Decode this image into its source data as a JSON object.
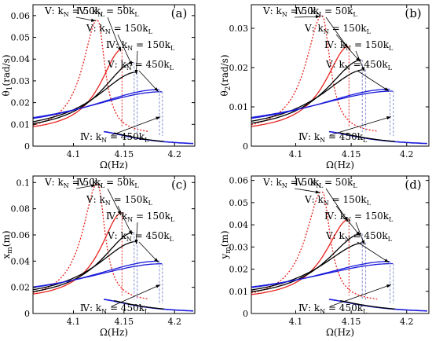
{
  "chart_data": [
    {
      "panel": "(a)",
      "type": "line",
      "ylabel": "θ1(rad/s)",
      "xlabel": "Ω(Hz)",
      "xlim": [
        4.06,
        4.22
      ],
      "ylim": [
        0,
        0.065
      ],
      "xticks": [
        4.1,
        4.15,
        4.2
      ],
      "xtick_labels": [
        "4.1",
        "4.15",
        "4.2"
      ],
      "yticks": [
        0,
        0.01,
        0.02,
        0.03,
        0.04,
        0.05,
        0.06
      ],
      "ytick_labels": [
        "0",
        "0.01",
        "0.02",
        "0.03",
        "0.04",
        "0.05",
        "0.06"
      ],
      "peaks": {
        "red": [
          4.124,
          0.0585,
          4.148,
          0.0445
        ],
        "black": [
          4.16,
          0.0385,
          4.163,
          0.034
        ],
        "blue": [
          4.185,
          0.026,
          4.188,
          0.025
        ]
      },
      "annotations": [
        {
          "text": "Ⅴ: k",
          "sub": "N",
          "rest": " = 50k",
          "sub2": "L",
          "tx": 15,
          "ty": 12,
          "ax": 4.122,
          "ay": 0.0575
        },
        {
          "text": "Ⅳ: k",
          "sub": "N",
          "rest": " = 50k",
          "sub2": "L",
          "tx": 55,
          "ty": 12,
          "ax": 4.147,
          "ay": 0.0435
        },
        {
          "text": "Ⅴ: k",
          "sub": "N",
          "rest": " = 150k",
          "sub2": "L",
          "tx": 68,
          "ty": 34,
          "ax": 4.158,
          "ay": 0.037
        },
        {
          "text": "Ⅳ: k",
          "sub": "N",
          "rest": " = 150k",
          "sub2": "L",
          "tx": 93,
          "ty": 55,
          "ax": 4.162,
          "ay": 0.033
        },
        {
          "text": "Ⅴ: k",
          "sub": "N",
          "rest": " = 450k",
          "sub2": "L",
          "tx": 95,
          "ty": 80,
          "ax": 4.184,
          "ay": 0.025
        },
        {
          "text": "Ⅳ: k",
          "sub": "N",
          "rest": " = 450k",
          "sub2": "L",
          "tx": 60,
          "ty": 172,
          "ax": 4.186,
          "ay": 0.0135
        }
      ]
    },
    {
      "panel": "(b)",
      "type": "line",
      "ylabel": "θ2(rad/s)",
      "xlabel": "Ω(Hz)",
      "xlim": [
        4.06,
        4.22
      ],
      "ylim": [
        0,
        0.036
      ],
      "xticks": [
        4.1,
        4.15,
        4.2
      ],
      "xtick_labels": [
        "4.1",
        "4.15",
        "4.2"
      ],
      "yticks": [
        0,
        0.01,
        0.02,
        0.03
      ],
      "ytick_labels": [
        "0",
        "0.01",
        "0.02",
        "0.03"
      ],
      "peaks": {
        "red": [
          4.124,
          0.0335,
          4.148,
          0.0255
        ],
        "black": [
          4.16,
          0.022,
          4.163,
          0.0195
        ],
        "blue": [
          4.185,
          0.0145,
          4.188,
          0.014
        ]
      },
      "annotations": [
        {
          "text": "Ⅴ: k",
          "sub": "N",
          "rest": " = 50k",
          "sub2": "L",
          "tx": 15,
          "ty": 12,
          "ax": 4.122,
          "ay": 0.033
        },
        {
          "text": "Ⅳ: k",
          "sub": "N",
          "rest": " = 50k",
          "sub2": "L",
          "tx": 55,
          "ty": 12,
          "ax": 4.147,
          "ay": 0.025
        },
        {
          "text": "Ⅴ: k",
          "sub": "N",
          "rest": " = 150k",
          "sub2": "L",
          "tx": 68,
          "ty": 34,
          "ax": 4.158,
          "ay": 0.0215
        },
        {
          "text": "Ⅳ: k",
          "sub": "N",
          "rest": " = 150k",
          "sub2": "L",
          "tx": 93,
          "ty": 55,
          "ax": 4.162,
          "ay": 0.019
        },
        {
          "text": "Ⅴ: k",
          "sub": "N",
          "rest": " = 450k",
          "sub2": "L",
          "tx": 95,
          "ty": 80,
          "ax": 4.184,
          "ay": 0.014
        },
        {
          "text": "Ⅳ: k",
          "sub": "N",
          "rest": " = 450k",
          "sub2": "L",
          "tx": 60,
          "ty": 172,
          "ax": 4.186,
          "ay": 0.0075
        }
      ]
    },
    {
      "panel": "(c)",
      "type": "line",
      "ylabel": "xm(m)",
      "xlabel": "Ω(Hz)",
      "xlim": [
        4.06,
        4.22
      ],
      "ylim": [
        0,
        0.105
      ],
      "xticks": [
        4.1,
        4.15,
        4.2
      ],
      "xtick_labels": [
        "4.1",
        "4.15",
        "4.2"
      ],
      "yticks": [
        0,
        0.02,
        0.04,
        0.06,
        0.08,
        0.1
      ],
      "ytick_labels": [
        "0",
        "0.02",
        "0.04",
        "0.06",
        "0.08",
        "0.1"
      ],
      "peaks": {
        "red": [
          4.124,
          0.1,
          4.148,
          0.077
        ],
        "black": [
          4.16,
          0.062,
          4.163,
          0.055
        ],
        "blue": [
          4.185,
          0.04,
          4.188,
          0.038
        ]
      },
      "annotations": [
        {
          "text": "Ⅴ: k",
          "sub": "N",
          "rest": " = 50k",
          "sub2": "L",
          "tx": 15,
          "ty": 12,
          "ax": 4.122,
          "ay": 0.098
        },
        {
          "text": "Ⅳ: k",
          "sub": "N",
          "rest": " = 50k",
          "sub2": "L",
          "tx": 55,
          "ty": 12,
          "ax": 4.147,
          "ay": 0.075
        },
        {
          "text": "Ⅴ: k",
          "sub": "N",
          "rest": " = 150k",
          "sub2": "L",
          "tx": 68,
          "ty": 34,
          "ax": 4.158,
          "ay": 0.06
        },
        {
          "text": "Ⅳ: k",
          "sub": "N",
          "rest": " = 150k",
          "sub2": "L",
          "tx": 93,
          "ty": 55,
          "ax": 4.162,
          "ay": 0.053
        },
        {
          "text": "Ⅴ: k",
          "sub": "N",
          "rest": " = 450k",
          "sub2": "L",
          "tx": 95,
          "ty": 80,
          "ax": 4.184,
          "ay": 0.039
        },
        {
          "text": "Ⅳ: k",
          "sub": "N",
          "rest": " = 450k",
          "sub2": "L",
          "tx": 60,
          "ty": 172,
          "ax": 4.186,
          "ay": 0.022
        }
      ]
    },
    {
      "panel": "(d)",
      "type": "line",
      "ylabel": "ym(m)",
      "xlabel": "Ω(Hz)",
      "xlim": [
        4.06,
        4.22
      ],
      "ylim": [
        0,
        0.062
      ],
      "xticks": [
        4.1,
        4.15,
        4.2
      ],
      "xtick_labels": [
        "4.1",
        "4.15",
        "4.2"
      ],
      "yticks": [
        0,
        0.01,
        0.02,
        0.03,
        0.04,
        0.05,
        0.06
      ],
      "ytick_labels": [
        "0",
        "0.01",
        "0.02",
        "0.03",
        "0.04",
        "0.05",
        "0.06"
      ],
      "peaks": {
        "red": [
          4.124,
          0.0555,
          4.148,
          0.0425
        ],
        "black": [
          4.16,
          0.036,
          4.163,
          0.032
        ],
        "blue": [
          4.185,
          0.0235,
          4.188,
          0.0225
        ]
      },
      "annotations": [
        {
          "text": "Ⅴ: k",
          "sub": "N",
          "rest": " = 50k",
          "sub2": "L",
          "tx": 15,
          "ty": 12,
          "ax": 4.122,
          "ay": 0.0545
        },
        {
          "text": "Ⅳ: k",
          "sub": "N",
          "rest": " = 50k",
          "sub2": "L",
          "tx": 55,
          "ty": 12,
          "ax": 4.147,
          "ay": 0.0415
        },
        {
          "text": "Ⅴ: k",
          "sub": "N",
          "rest": " = 150k",
          "sub2": "L",
          "tx": 68,
          "ty": 34,
          "ax": 4.158,
          "ay": 0.035
        },
        {
          "text": "Ⅳ: k",
          "sub": "N",
          "rest": " = 150k",
          "sub2": "L",
          "tx": 93,
          "ty": 55,
          "ax": 4.162,
          "ay": 0.031
        },
        {
          "text": "Ⅴ: k",
          "sub": "N",
          "rest": " = 450k",
          "sub2": "L",
          "tx": 95,
          "ty": 80,
          "ax": 4.184,
          "ay": 0.023
        },
        {
          "text": "Ⅳ: k",
          "sub": "N",
          "rest": " = 450k",
          "sub2": "L",
          "tx": 60,
          "ty": 172,
          "ax": 4.186,
          "ay": 0.013
        }
      ]
    }
  ],
  "colors": {
    "red": "#e8231e",
    "black": "#000000",
    "blue": "#1a1adb",
    "dashed": "#9aa0d8"
  }
}
